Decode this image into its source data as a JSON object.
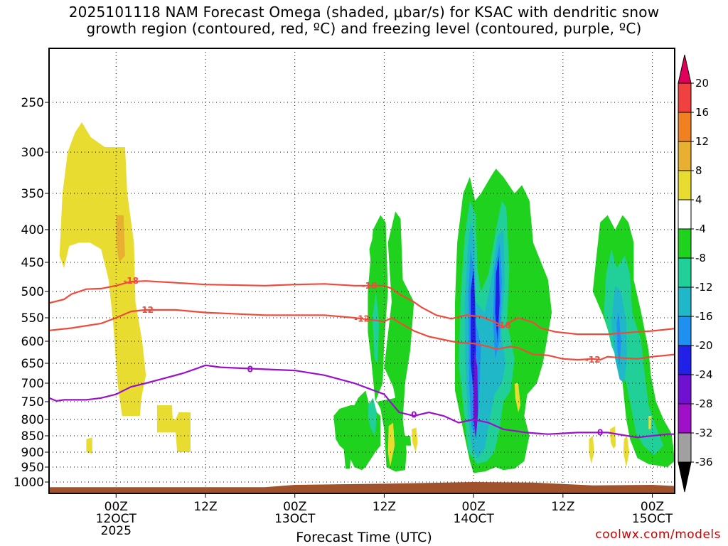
{
  "title_line1": "2025101118 NAM Forecast Omega (shaded, μbar/s) for KSAC with dendritic snow",
  "title_line2": "growth region (contoured, red, ºC) and freezing level (contoured, purple, ºC)",
  "credit": "coolwx.com/models",
  "chart_data": {
    "type": "time-height cross section",
    "xlabel": "Forecast Time (UTC)",
    "ylabel": "",
    "x_range_hours": [
      -9,
      75
    ],
    "y_range_hPa": [
      1020,
      200
    ],
    "y_ticks": [
      250,
      300,
      350,
      400,
      450,
      500,
      550,
      600,
      650,
      700,
      750,
      800,
      850,
      900,
      950,
      1000
    ],
    "x_ticks": [
      {
        "hour": 0,
        "lines": [
          "00Z",
          "12OCT",
          "2025"
        ]
      },
      {
        "hour": 12,
        "lines": [
          "12Z"
        ]
      },
      {
        "hour": 24,
        "lines": [
          "00Z",
          "13OCT"
        ]
      },
      {
        "hour": 36,
        "lines": [
          "12Z"
        ]
      },
      {
        "hour": 48,
        "lines": [
          "00Z",
          "14OCT"
        ]
      },
      {
        "hour": 60,
        "lines": [
          "12Z"
        ]
      },
      {
        "hour": 72,
        "lines": [
          "00Z",
          "15OCT"
        ]
      }
    ],
    "grid": "dotted",
    "colorbar": {
      "labels": [
        "20",
        "16",
        "12",
        "8",
        "4",
        "-4",
        "-8",
        "-12",
        "-16",
        "-20",
        "-24",
        "-28",
        "-32",
        "-36"
      ],
      "colors": [
        "#e0005a",
        "#f04040",
        "#f08020",
        "#e8b030",
        "#e8dc30",
        "#ffffff",
        "#1ed21e",
        "#20d098",
        "#20b8c8",
        "#2090f0",
        "#2020e8",
        "#7010d0",
        "#a010c8",
        "#a0a0a0",
        "#000000"
      ],
      "top_triangle": "#e0005a",
      "bottom_triangle": "#000000"
    },
    "contours": [
      {
        "name": "-18",
        "color": "#f04a3a",
        "label": "-18",
        "points": [
          [
            -9,
            522
          ],
          [
            -7,
            515
          ],
          [
            -6,
            505
          ],
          [
            -4,
            496
          ],
          [
            -2,
            495
          ],
          [
            0,
            490
          ],
          [
            2,
            483
          ],
          [
            4,
            482
          ],
          [
            8,
            485
          ],
          [
            12,
            488
          ],
          [
            20,
            490
          ],
          [
            24,
            488
          ],
          [
            28,
            487
          ],
          [
            32,
            490
          ],
          [
            34,
            490
          ],
          [
            36,
            490
          ],
          [
            37,
            495
          ],
          [
            38,
            505
          ],
          [
            40,
            520
          ],
          [
            41,
            530
          ],
          [
            43,
            545
          ],
          [
            45,
            552
          ],
          [
            47,
            545
          ],
          [
            49,
            548
          ],
          [
            51,
            560
          ],
          [
            52,
            570
          ],
          [
            53,
            558
          ],
          [
            54,
            550
          ],
          [
            56,
            560
          ],
          [
            57,
            572
          ],
          [
            59,
            580
          ],
          [
            62,
            585
          ],
          [
            66,
            585
          ],
          [
            70,
            580
          ],
          [
            72,
            578
          ],
          [
            75,
            573
          ]
        ],
        "labels_at": [
          [
            2,
            482
          ],
          [
            34,
            490
          ],
          [
            52,
            566
          ]
        ]
      },
      {
        "name": "-12",
        "color": "#f04a3a",
        "label": "-12",
        "points": [
          [
            -9,
            577
          ],
          [
            -6,
            572
          ],
          [
            -2,
            562
          ],
          [
            0,
            550
          ],
          [
            2,
            538
          ],
          [
            4,
            535
          ],
          [
            8,
            535
          ],
          [
            12,
            540
          ],
          [
            20,
            545
          ],
          [
            24,
            545
          ],
          [
            28,
            545
          ],
          [
            32,
            550
          ],
          [
            36,
            558
          ],
          [
            37,
            550
          ],
          [
            38,
            560
          ],
          [
            40,
            578
          ],
          [
            42,
            590
          ],
          [
            45,
            600
          ],
          [
            46,
            603
          ],
          [
            48,
            605
          ],
          [
            50,
            612
          ],
          [
            51,
            618
          ],
          [
            53,
            612
          ],
          [
            54,
            615
          ],
          [
            56,
            630
          ],
          [
            58,
            632
          ],
          [
            60,
            640
          ],
          [
            62,
            642
          ],
          [
            64,
            640
          ],
          [
            65,
            642
          ],
          [
            66,
            635
          ],
          [
            68,
            638
          ],
          [
            70,
            640
          ],
          [
            72,
            635
          ],
          [
            75,
            630
          ]
        ],
        "labels_at": [
          [
            4,
            535
          ],
          [
            33,
            552
          ],
          [
            64,
            642
          ]
        ]
      },
      {
        "name": "0",
        "color": "#9a10cc",
        "label": "0",
        "points": [
          [
            -9,
            740
          ],
          [
            -8,
            748
          ],
          [
            -7,
            745
          ],
          [
            -4,
            745
          ],
          [
            -2,
            740
          ],
          [
            0,
            730
          ],
          [
            2,
            710
          ],
          [
            4,
            700
          ],
          [
            6,
            690
          ],
          [
            9,
            675
          ],
          [
            11,
            662
          ],
          [
            12,
            655
          ],
          [
            14,
            660
          ],
          [
            20,
            665
          ],
          [
            24,
            668
          ],
          [
            28,
            680
          ],
          [
            32,
            700
          ],
          [
            36,
            730
          ],
          [
            37,
            755
          ],
          [
            38,
            780
          ],
          [
            40,
            790
          ],
          [
            42,
            780
          ],
          [
            44,
            790
          ],
          [
            46,
            810
          ],
          [
            48,
            800
          ],
          [
            50,
            810
          ],
          [
            52,
            830
          ],
          [
            55,
            840
          ],
          [
            58,
            845
          ],
          [
            62,
            840
          ],
          [
            66,
            840
          ],
          [
            70,
            855
          ],
          [
            72,
            850
          ],
          [
            74,
            845
          ],
          [
            75,
            845
          ]
        ],
        "labels_at": [
          [
            18,
            665
          ],
          [
            40,
            787
          ],
          [
            65,
            840
          ]
        ]
      }
    ],
    "shaded_regions": [
      {
        "label": "4",
        "color": "#e8dc30"
      },
      {
        "label": "8",
        "color": "#e8b030"
      },
      {
        "label": "-8",
        "color": "#1ed21e"
      },
      {
        "label": "-12",
        "color": "#20d098"
      },
      {
        "label": "-16",
        "color": "#20b8c8"
      },
      {
        "label": "-20",
        "color": "#2090f0"
      },
      {
        "label": "-24",
        "color": "#2020e8"
      },
      {
        "label": "-28",
        "color": "#7010d0"
      }
    ],
    "terrain_color": "#a0522d"
  }
}
